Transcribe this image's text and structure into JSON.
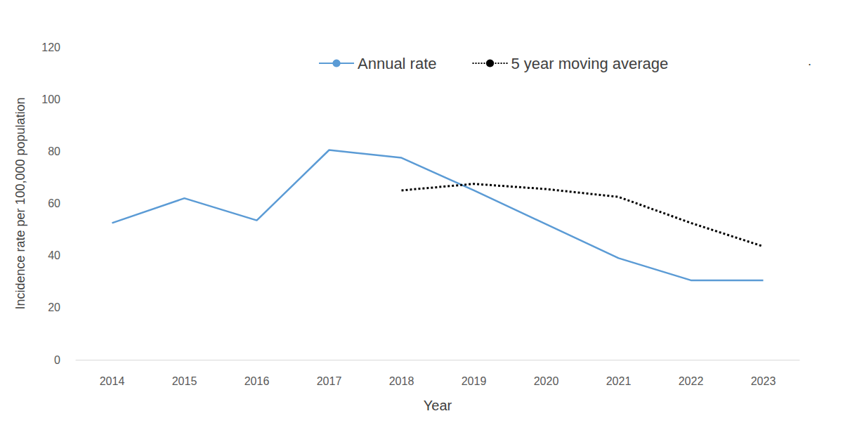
{
  "chart_data": {
    "type": "line",
    "x_label": "Year",
    "y_label": "Incidence rate per 100,000 population",
    "categories": [
      "2014",
      "2015",
      "2016",
      "2017",
      "2018",
      "2019",
      "2020",
      "2021",
      "2022",
      "2023"
    ],
    "series": [
      {
        "name": "Annual rate",
        "color": "#5b9bd5",
        "line_style": "solid",
        "marker": "none",
        "values": [
          52.5,
          62,
          53.5,
          80.5,
          77.5,
          65,
          52,
          39,
          30.5,
          30.5
        ]
      },
      {
        "name": "5 year moving average",
        "color": "#000000",
        "line_style": "dotted",
        "marker": "none",
        "values": [
          null,
          null,
          null,
          null,
          65,
          67.5,
          65.5,
          62.5,
          52.5,
          43.5
        ]
      }
    ],
    "ylim": [
      0,
      120
    ],
    "yticks": [
      0,
      20,
      40,
      60,
      80,
      100,
      120
    ],
    "grid": false,
    "legend": "top-right",
    "annotations": [
      "."
    ]
  }
}
